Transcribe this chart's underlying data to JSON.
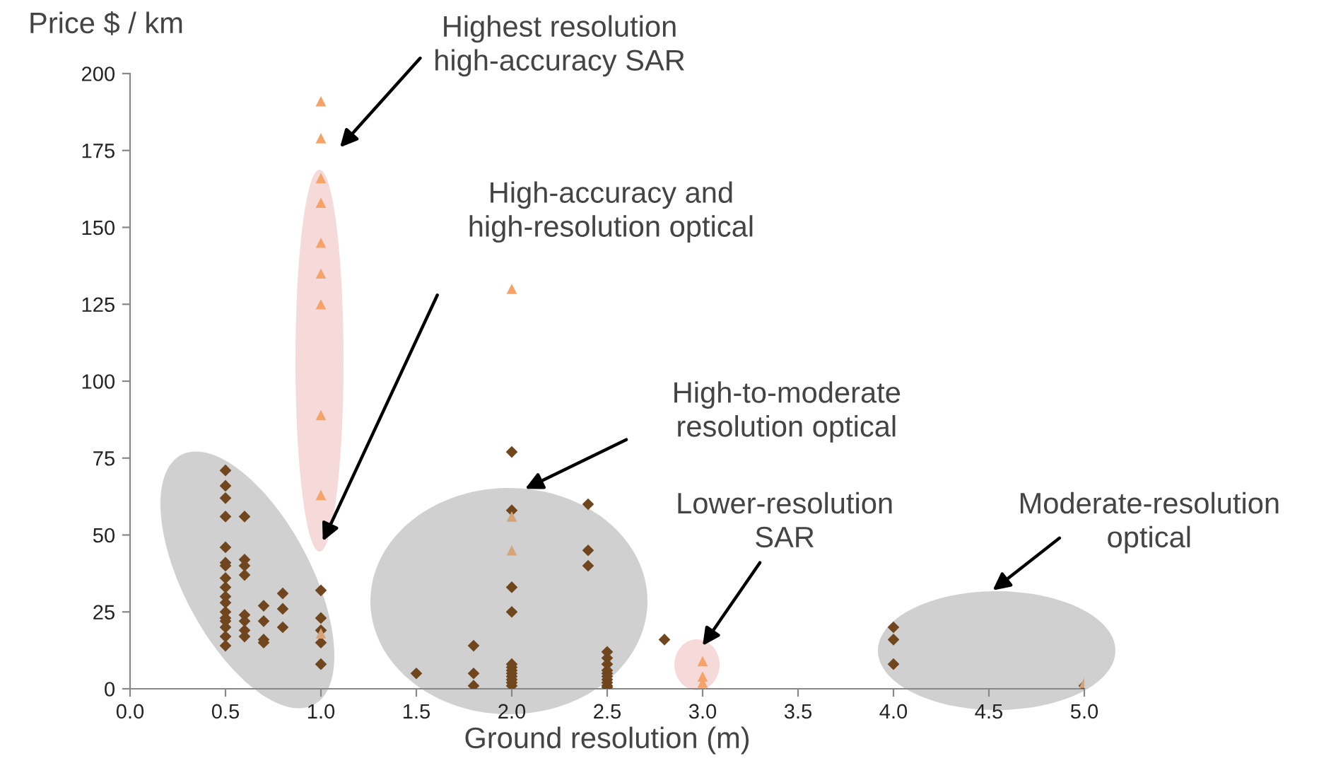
{
  "chart_data": {
    "type": "scatter",
    "ylabel": "Price $ / km",
    "xlabel": "Ground resolution (m)",
    "xlim": [
      0,
      5
    ],
    "ylim": [
      0,
      200
    ],
    "xticks": [
      {
        "value": 0,
        "label": "0.0"
      },
      {
        "value": 0.5,
        "label": "0.5"
      },
      {
        "value": 1,
        "label": "1.0"
      },
      {
        "value": 1.5,
        "label": "1.5"
      },
      {
        "value": 2,
        "label": "2.0"
      },
      {
        "value": 2.5,
        "label": "2.5"
      },
      {
        "value": 3,
        "label": "3.0"
      },
      {
        "value": 3.5,
        "label": "3.5"
      },
      {
        "value": 4,
        "label": "4.0"
      },
      {
        "value": 4.5,
        "label": "4.5"
      },
      {
        "value": 5,
        "label": "5.0"
      }
    ],
    "yticks": [
      0,
      25,
      50,
      75,
      100,
      125,
      150,
      175,
      200
    ],
    "grid": false,
    "legend": false,
    "series": [
      {
        "color": "#70461f",
        "marker": "diamond",
        "x": [
          0.5,
          0.5,
          0.5,
          0.5,
          0.5,
          0.5,
          0.5,
          0.5,
          0.5,
          0.5,
          0.5,
          0.5,
          0.5,
          0.5,
          0.5,
          0.5,
          0.5,
          0.6,
          0.6,
          0.6,
          0.6,
          0.6,
          0.6,
          0.6,
          0.6,
          0.7,
          0.7,
          0.7,
          0.7,
          0.8,
          0.8,
          0.8,
          1.0,
          1.0,
          1.0,
          1.0,
          1.0,
          1.5,
          1.8,
          1.8,
          1.8,
          2.0,
          2.0,
          2.0,
          2.0,
          2.0,
          2.0,
          2.0,
          2.0,
          2.0,
          2.0,
          2.0,
          2.0,
          2.4,
          2.4,
          2.4,
          2.5,
          2.5,
          2.5,
          2.5,
          2.5,
          2.5,
          2.5,
          2.5,
          2.5,
          2.5,
          2.8,
          4.0,
          4.0,
          4.0,
          5.0
        ],
        "values": [
          71,
          66,
          62,
          56,
          46,
          41,
          40,
          36,
          33,
          30,
          28,
          25,
          23,
          22,
          20,
          17,
          14,
          56,
          42,
          40,
          37,
          24,
          22,
          19,
          17,
          27,
          22,
          16,
          15,
          31,
          26,
          20,
          32,
          23,
          19,
          15,
          8,
          5,
          14,
          5,
          1,
          77,
          58,
          33,
          25,
          8,
          7,
          6,
          5,
          4,
          3,
          2,
          1,
          60,
          45,
          40,
          12,
          10,
          8,
          6,
          5,
          4,
          3,
          2,
          1,
          0.5,
          16,
          20,
          16,
          8,
          1
        ]
      },
      {
        "color": "#f4a46a",
        "marker": "triangle",
        "x": [
          1.0,
          1.0,
          1.0,
          1.0,
          1.0,
          1.0,
          1.0,
          1.0,
          1.0,
          2.0,
          3.0,
          3.0,
          3.0
        ],
        "values": [
          191,
          179,
          166,
          158,
          145,
          135,
          125,
          89,
          63,
          130,
          9,
          4,
          2
        ]
      },
      {
        "color": "#d4a57a",
        "marker": "triangle",
        "x": [
          1.0,
          2.0,
          2.0,
          5.0
        ],
        "values": [
          18,
          56,
          45,
          2
        ]
      }
    ],
    "annotations": [
      "Highest resolution\nhigh-accuracy SAR",
      "High-accuracy and\nhigh-resolution optical",
      "High-to-moderate\nresolution optical",
      "Lower-resolution\nSAR",
      "Moderate-resolution\noptical"
    ]
  }
}
